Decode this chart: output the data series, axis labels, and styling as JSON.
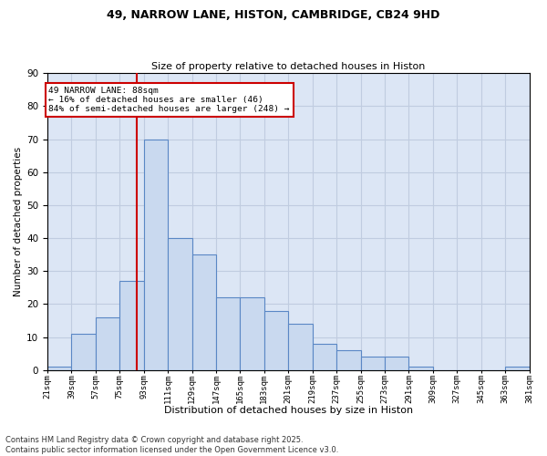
{
  "title1": "49, NARROW LANE, HISTON, CAMBRIDGE, CB24 9HD",
  "title2": "Size of property relative to detached houses in Histon",
  "xlabel": "Distribution of detached houses by size in Histon",
  "ylabel": "Number of detached properties",
  "annotation_title": "49 NARROW LANE: 88sqm",
  "annotation_line1": "← 16% of detached houses are smaller (46)",
  "annotation_line2": "84% of semi-detached houses are larger (248) →",
  "property_size": 88,
  "bar_left_edges": [
    21,
    39,
    57,
    75,
    93,
    111,
    129,
    147,
    165,
    183,
    201,
    219,
    237,
    255,
    273,
    291,
    309,
    327,
    345,
    363
  ],
  "bar_heights": [
    1,
    11,
    16,
    27,
    70,
    40,
    35,
    22,
    22,
    18,
    14,
    8,
    6,
    4,
    4,
    1,
    0,
    0,
    0,
    1
  ],
  "bin_width": 18,
  "bar_color": "#c9d9ef",
  "bar_edge_color": "#5a87c5",
  "vline_color": "#cc0000",
  "vline_x": 88,
  "annotation_box_color": "#cc0000",
  "grid_color": "#c0cce0",
  "background_color": "#dce6f5",
  "ylim": [
    0,
    90
  ],
  "yticks": [
    0,
    10,
    20,
    30,
    40,
    50,
    60,
    70,
    80,
    90
  ],
  "footnote1": "Contains HM Land Registry data © Crown copyright and database right 2025.",
  "footnote2": "Contains public sector information licensed under the Open Government Licence v3.0."
}
